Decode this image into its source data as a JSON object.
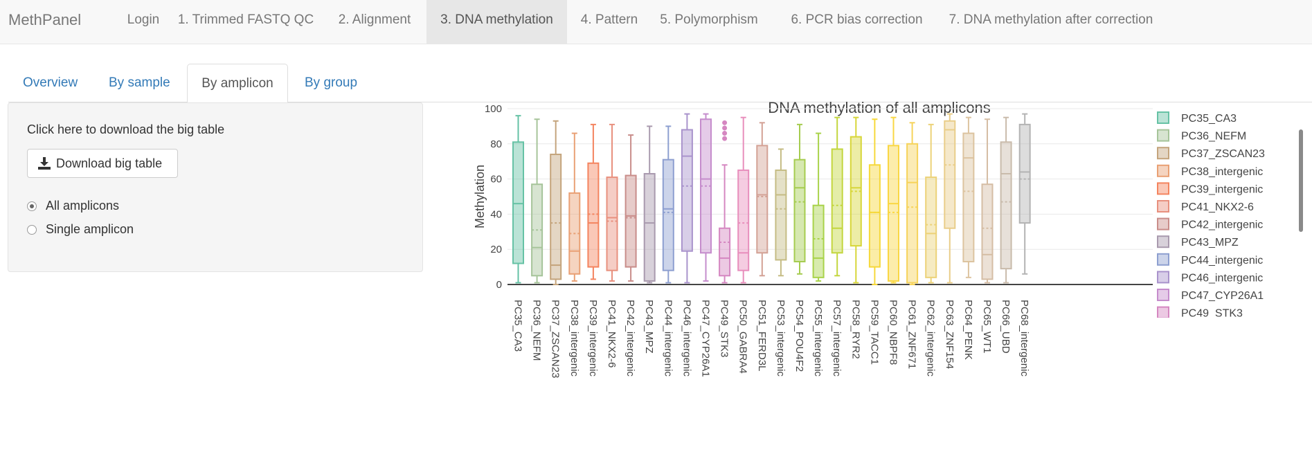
{
  "navbar": {
    "brand": "MethPanel",
    "items": [
      {
        "label": "Login"
      },
      {
        "label": "1. Trimmed FASTQ QC"
      },
      {
        "label": "2. Alignment"
      },
      {
        "label": "3. DNA methylation",
        "active": true
      },
      {
        "label": "4. Pattern"
      },
      {
        "label": "5. Polymorphism"
      },
      {
        "label": "6. PCR bias correction"
      },
      {
        "label": "7. DNA methylation after correction"
      }
    ]
  },
  "tabs": [
    {
      "label": "Overview"
    },
    {
      "label": "By sample"
    },
    {
      "label": "By amplicon",
      "active": true
    },
    {
      "label": "By group"
    }
  ],
  "panel": {
    "download_text": "Click here to download the big table",
    "download_button": "Download big table",
    "radios": [
      {
        "label": "All amplicons",
        "checked": true
      },
      {
        "label": "Single amplicon",
        "checked": false
      }
    ]
  },
  "chart_data": {
    "type": "box",
    "title": "DNA methylation of all amplicons",
    "xlabel": "",
    "ylabel": "Methylation",
    "ylim": [
      0,
      100
    ],
    "yticks": [
      0,
      20,
      40,
      60,
      80,
      100
    ],
    "grid": true,
    "legend_position": "right",
    "legend_visible_count": 13,
    "series": [
      {
        "name": "PC35_CA3",
        "color": "#66c2a5",
        "min": 1,
        "q1": 12,
        "median": 46,
        "q3": 81,
        "max": 96
      },
      {
        "name": "PC36_NEFM",
        "color": "#a6c49a",
        "min": 1,
        "q1": 5,
        "median": 21,
        "q3": 57,
        "max": 94,
        "mean": 31
      },
      {
        "name": "PC37_ZSCAN23",
        "color": "#c4a47c",
        "min": 0,
        "q1": 3,
        "median": 11,
        "q3": 74,
        "max": 93,
        "mean": 35
      },
      {
        "name": "PC38_intergenic",
        "color": "#e9a074",
        "min": 2,
        "q1": 6,
        "median": 19,
        "q3": 52,
        "max": 86,
        "mean": 29
      },
      {
        "name": "PC39_intergenic",
        "color": "#f4845f",
        "min": 3,
        "q1": 10,
        "median": 35,
        "q3": 69,
        "max": 91,
        "mean": 40
      },
      {
        "name": "PC41_NKX2-6",
        "color": "#e8907e",
        "min": 2,
        "q1": 8,
        "median": 38,
        "q3": 61,
        "max": 91,
        "mean": 36
      },
      {
        "name": "PC42_intergenic",
        "color": "#c98d8a",
        "min": 2,
        "q1": 10,
        "median": 39,
        "q3": 62,
        "max": 85,
        "mean": 38
      },
      {
        "name": "PC43_MPZ",
        "color": "#a99aae",
        "min": 1,
        "q1": 2,
        "median": 35,
        "q3": 63,
        "max": 90
      },
      {
        "name": "PC44_intergenic",
        "color": "#8d9fd0",
        "min": 1,
        "q1": 8,
        "median": 43,
        "q3": 71,
        "max": 90,
        "mean": 41
      },
      {
        "name": "PC46_intergenic",
        "color": "#a993cc",
        "min": 1,
        "q1": 19,
        "median": 73,
        "q3": 88,
        "max": 97,
        "mean": 56
      },
      {
        "name": "PC47_CYP26A1",
        "color": "#c58ccc",
        "min": 2,
        "q1": 18,
        "median": 60,
        "q3": 94,
        "max": 97,
        "mean": 56
      },
      {
        "name": "PC49_STK3",
        "color": "#d587c1",
        "min": 1,
        "q1": 5,
        "median": 15,
        "q3": 32,
        "max": 68,
        "mean": 24,
        "outliers": [
          92,
          89,
          86,
          83
        ]
      },
      {
        "name": "PC50_GABRA4",
        "color": "#e88ebc",
        "min": 1,
        "q1": 8,
        "median": 18,
        "q3": 65,
        "max": 95,
        "mean": 35
      },
      {
        "name": "PC51_FERD3L",
        "color": "#d3a195",
        "min": 5,
        "q1": 18,
        "median": 51,
        "q3": 79,
        "max": 92,
        "mean": 50
      },
      {
        "name": "PC53_intergenic",
        "color": "#c5bc84",
        "min": 5,
        "q1": 14,
        "median": 51,
        "q3": 65,
        "max": 77,
        "mean": 43
      },
      {
        "name": "PC54_POU4F2",
        "color": "#a5cc4f",
        "min": 6,
        "q1": 13,
        "median": 55,
        "q3": 71,
        "max": 91,
        "mean": 47
      },
      {
        "name": "PC55_intergenic",
        "color": "#a9d34a",
        "min": 2,
        "q1": 4,
        "median": 15,
        "q3": 45,
        "max": 86,
        "mean": 26
      },
      {
        "name": "PC57_intergenic",
        "color": "#c3d63e",
        "min": 5,
        "q1": 18,
        "median": 32,
        "q3": 77,
        "max": 95,
        "mean": 45
      },
      {
        "name": "PC58_RYR2",
        "color": "#d7d63a",
        "min": 1,
        "q1": 22,
        "median": 55,
        "q3": 84,
        "max": 95,
        "mean": 53
      },
      {
        "name": "PC59_TACC1",
        "color": "#f6d83a",
        "min": 0,
        "q1": 10,
        "median": 41,
        "q3": 68,
        "max": 94,
        "mean": 41
      },
      {
        "name": "PC60_NBPF8",
        "color": "#f9d744",
        "min": 1,
        "q1": 2,
        "median": 46,
        "q3": 79,
        "max": 95,
        "mean": 41
      },
      {
        "name": "PC61_ZNF671",
        "color": "#f6d35a",
        "min": 0,
        "q1": 1,
        "median": 58,
        "q3": 80,
        "max": 92,
        "mean": 44
      },
      {
        "name": "PC62_intergenic",
        "color": "#ecd278",
        "min": 1,
        "q1": 4,
        "median": 29,
        "q3": 61,
        "max": 91,
        "mean": 34
      },
      {
        "name": "PC63_ZNF154",
        "color": "#e9cd89",
        "min": 1,
        "q1": 32,
        "median": 88,
        "q3": 93,
        "max": 97,
        "mean": 68
      },
      {
        "name": "PC64_PENK",
        "color": "#dcc39f",
        "min": 4,
        "q1": 13,
        "median": 72,
        "q3": 86,
        "max": 95,
        "mean": 53
      },
      {
        "name": "PC65_WT1",
        "color": "#d5bda4",
        "min": 1,
        "q1": 3,
        "median": 17,
        "q3": 57,
        "max": 94,
        "mean": 32
      },
      {
        "name": "PC66_UBD",
        "color": "#c9bbab",
        "min": 1,
        "q1": 9,
        "median": 63,
        "q3": 81,
        "max": 95,
        "mean": 47
      },
      {
        "name": "PC68_intergenic",
        "color": "#b3b3b3",
        "min": 6,
        "q1": 35,
        "median": 64,
        "q3": 91,
        "max": 97,
        "mean": 60
      }
    ]
  }
}
